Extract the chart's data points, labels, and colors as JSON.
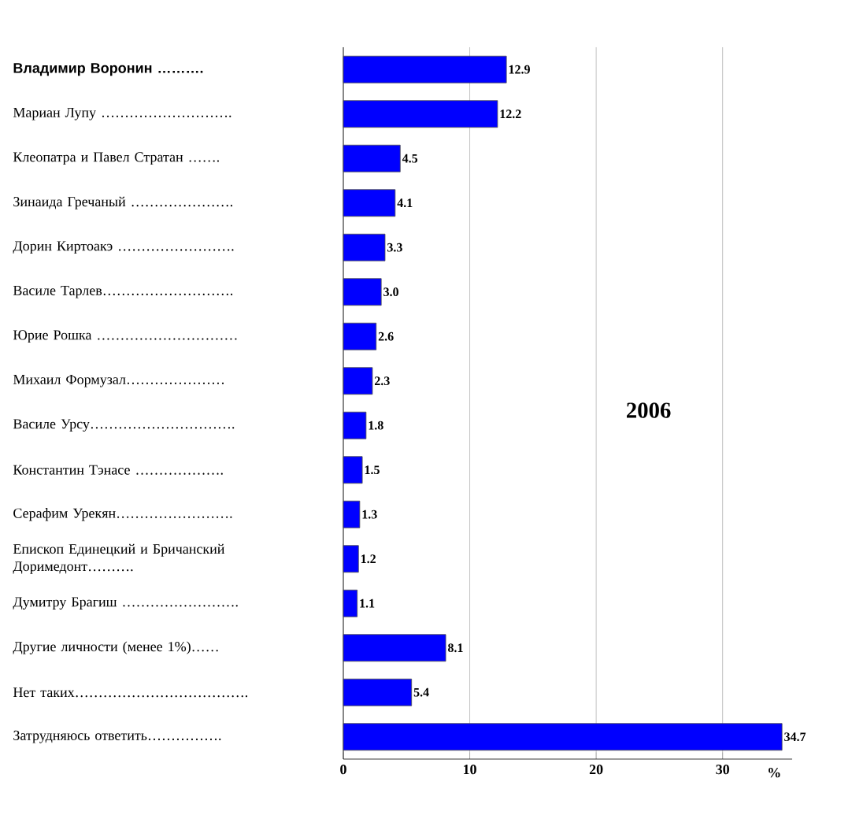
{
  "chart_data": {
    "type": "bar",
    "orientation": "horizontal",
    "categories": [
      "Владимир Воронин ……….",
      "Мариан Лупу ……………………….",
      "Клеопатра и Павел Стратан …….",
      "Зинаида Гречаный ………………….",
      "Дорин Киртоакэ …………………….",
      "Василе Тарлев……………………….",
      "Юрие Рошка …………………………",
      "Михаил Формузал…………………",
      "Василе Урсу………………………….",
      "Константин Тэнасе ……………….",
      "Серафим Урекян…………………….",
      "Епископ Единецкий и Бричанский Доримедонт……….",
      "Думитру Брагиш …………………….",
      "Другие личности (менее 1%)……",
      "Нет таких……………………………….",
      "Затрудняюсь ответить……………."
    ],
    "values": [
      12.9,
      12.2,
      4.5,
      4.1,
      3.3,
      3.0,
      2.6,
      2.3,
      1.8,
      1.5,
      1.3,
      1.2,
      1.1,
      8.1,
      5.4,
      34.7
    ],
    "color": "#0000ff",
    "xlim": [
      0,
      35.5
    ],
    "xticks": [
      0,
      10,
      20,
      30
    ],
    "value_labels": [
      "12.9",
      "12.2",
      "4.5",
      "4.1",
      "3.3",
      "3.0",
      "2.6",
      "2.3",
      "1.8",
      "1.5",
      "1.3",
      "1.2",
      "1.1",
      "8.1",
      "5.4",
      "34.7"
    ],
    "xlabel": "%",
    "grid": "x",
    "annotations": [
      "2006"
    ]
  }
}
